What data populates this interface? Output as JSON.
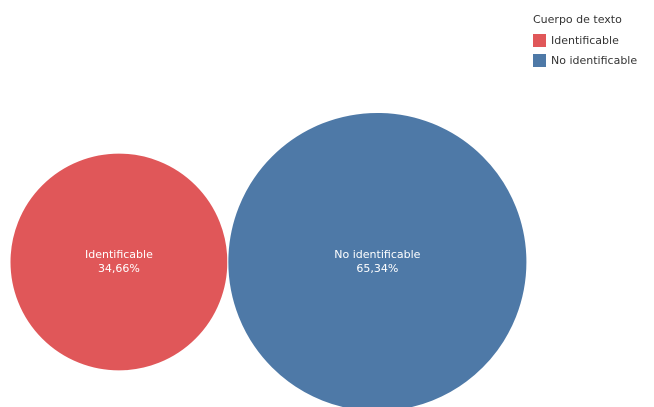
{
  "chart_data": {
    "type": "bubble",
    "legend": {
      "title": "Cuerpo de texto",
      "position": "top-right"
    },
    "series": [
      {
        "name": "Identificable",
        "value": 34.66,
        "value_label": "34,66%",
        "color": "#e05759"
      },
      {
        "name": "No identificable",
        "value": 65.34,
        "value_label": "65,34%",
        "color": "#4e79a7"
      }
    ]
  }
}
